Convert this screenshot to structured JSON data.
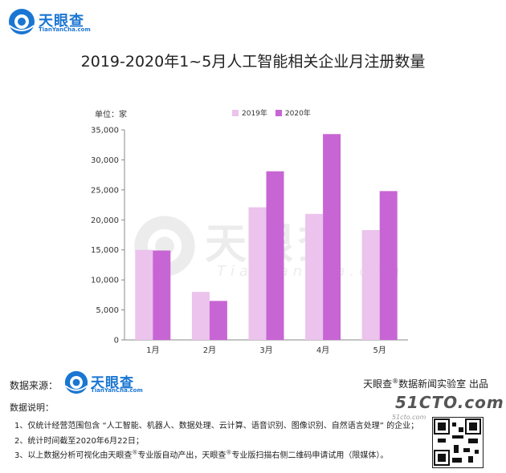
{
  "brand": {
    "name": "天眼查",
    "domain": "TianYanCha.com"
  },
  "chart_data": {
    "type": "bar",
    "title": "2019-2020年1~5月人工智能相关企业月注册数量",
    "unit_label": "单位：家",
    "categories": [
      "1月",
      "2月",
      "3月",
      "4月",
      "5月"
    ],
    "series": [
      {
        "name": "2019年",
        "color": "#ebc3ec",
        "values": [
          15000,
          8000,
          22100,
          21000,
          18300
        ]
      },
      {
        "name": "2020年",
        "color": "#c865d4",
        "values": [
          14900,
          6500,
          28100,
          34300,
          24800
        ]
      }
    ],
    "ylim": [
      0,
      35000
    ],
    "yticks": [
      "0",
      "5,000",
      "10,000",
      "15,000",
      "20,000",
      "25,000",
      "30,000",
      "35,000"
    ],
    "ytick_values": [
      0,
      5000,
      10000,
      15000,
      20000,
      25000,
      30000,
      35000
    ],
    "grid": false,
    "legend": "top-center"
  },
  "footer": {
    "source_label": "数据来源：",
    "producer_prefix": "天眼查",
    "producer_reg": "®",
    "producer_suffix": "数据新闻实验室 出品",
    "notes_title": "数据说明：",
    "notes": [
      "1、仅统计经营范围包含 “人工智能、机器人、数据处理、云计算、语音识别、图像识别、自然语言处理” 的企业；",
      "2、统计时间截至2020年6月22日；"
    ],
    "note3_a": "3、以上数据分析可视化由天眼查",
    "note3_b": "专业版自动产出，天眼查",
    "note3_c": "专业版扫描右侧二维码申请试用（限媒体）。",
    "reg": "®"
  },
  "stamp": {
    "text": "51CTO.com",
    "sub": "51cto.com"
  }
}
